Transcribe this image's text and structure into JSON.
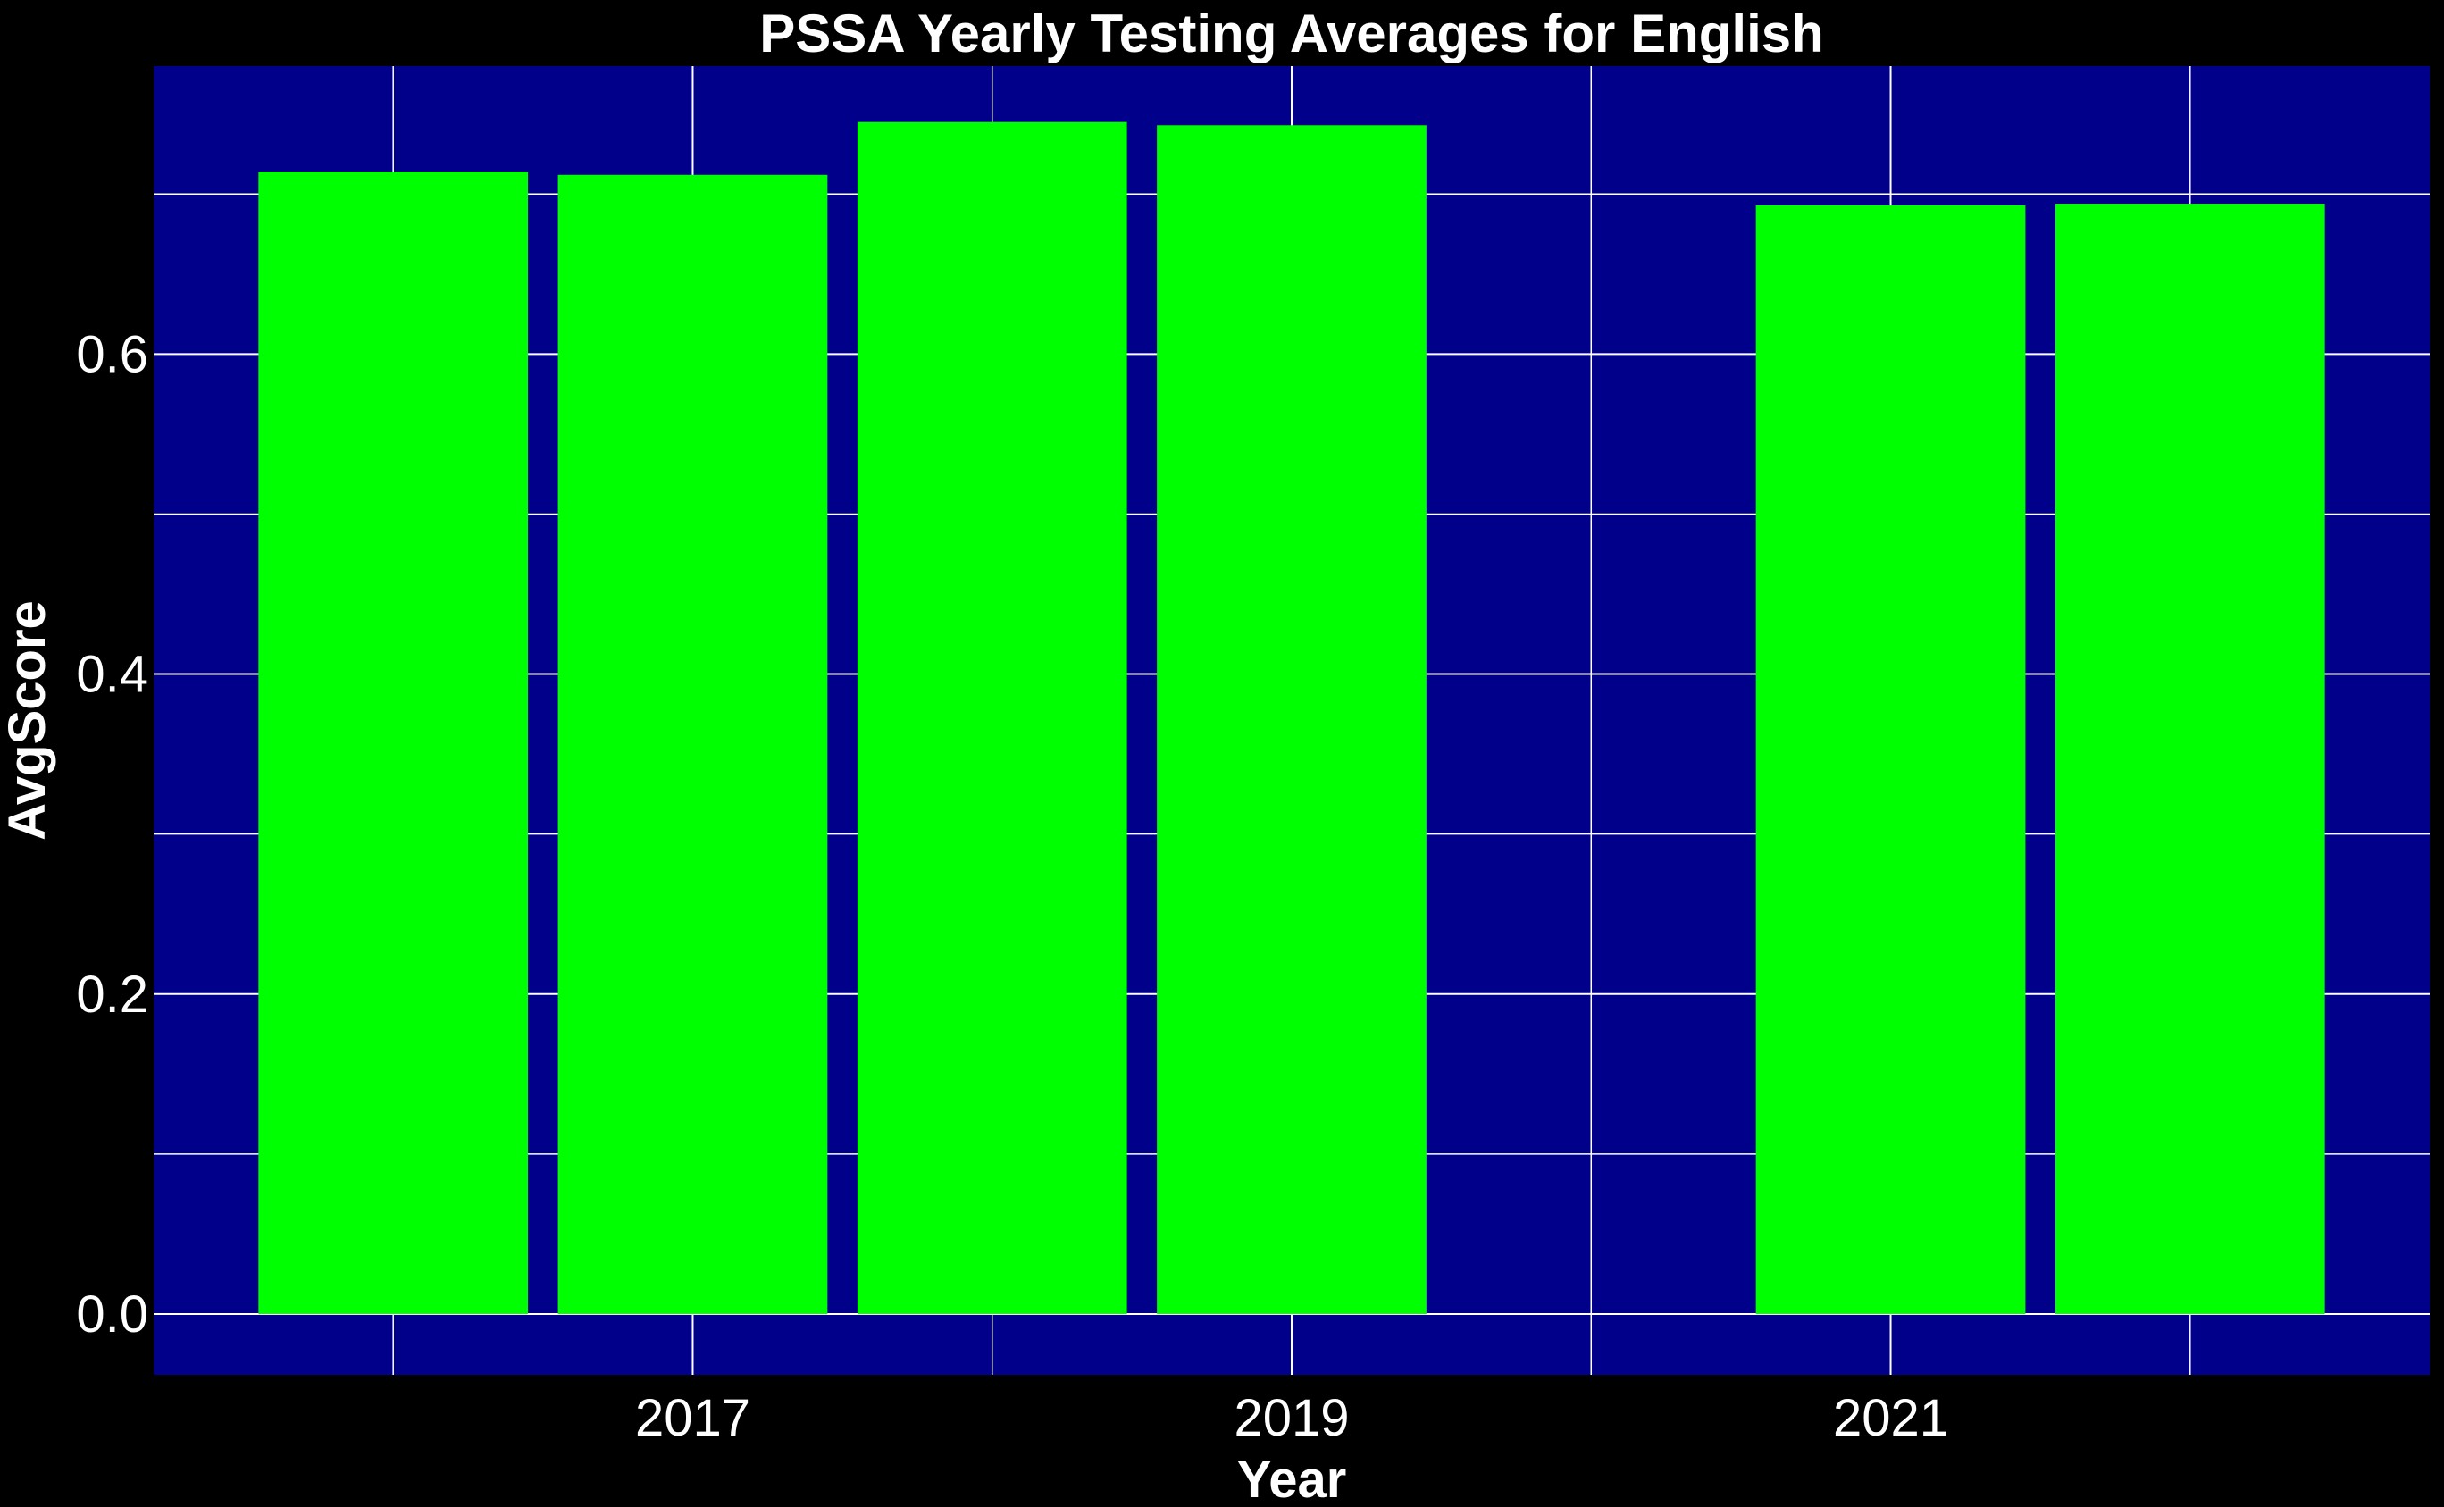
{
  "chart_data": {
    "type": "bar",
    "title": "PSSA Yearly Testing Averages for English",
    "xlabel": "Year",
    "ylabel": "AvgScore",
    "x": [
      2016,
      2017,
      2018,
      2019,
      2021,
      2022
    ],
    "values": [
      0.714,
      0.712,
      0.745,
      0.743,
      0.693,
      0.694
    ],
    "xlim": [
      2015.2,
      2022.8
    ],
    "ylim": [
      -0.038,
      0.78
    ],
    "x_ticks": [
      2017,
      2019,
      2021
    ],
    "x_tick_labels": [
      "2017",
      "2019",
      "2021"
    ],
    "y_ticks": [
      0.0,
      0.2,
      0.4,
      0.6
    ],
    "y_tick_labels": [
      "0.0",
      "0.2",
      "0.4",
      "0.6"
    ],
    "grid": true,
    "colors": {
      "background": "#000000",
      "panel": "#00008B",
      "bar": "#00FF00",
      "grid": "#FFFFFF",
      "text": "#FFFFFF"
    }
  }
}
